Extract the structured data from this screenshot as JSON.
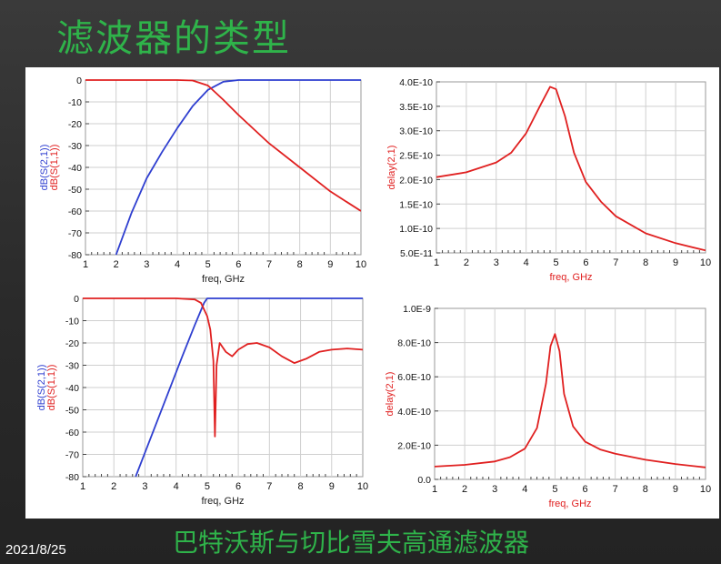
{
  "slide": {
    "title": "滤波器的类型",
    "caption": "巴特沃斯与切比雪夫高通滤波器",
    "date": "2021/8/25"
  },
  "colors": {
    "title": "#2fb34a",
    "s21": "#2f3fd0",
    "s11": "#e02020",
    "grid": "#cfcfcf"
  },
  "chart_data": [
    {
      "type": "line",
      "xlabel": "freq, GHz",
      "ylabel_parts": [
        {
          "text": "dB(S(2,1))",
          "color": "#2f3fd0"
        },
        {
          "text": "dB(S(1,1))",
          "color": "#e02020"
        }
      ],
      "xlim": [
        1,
        10
      ],
      "ylim": [
        -80,
        0
      ],
      "x_ticks": [
        "1",
        "2",
        "3",
        "4",
        "5",
        "6",
        "7",
        "8",
        "9",
        "10"
      ],
      "y_ticks": [
        "0",
        "-10",
        "-20",
        "-30",
        "-40",
        "-50",
        "-60",
        "-70",
        "-80"
      ],
      "series": [
        {
          "name": "dB(S(2,1))",
          "color": "#2f3fd0",
          "x": [
            2.0,
            2.5,
            3.0,
            3.5,
            4.0,
            4.5,
            5.0,
            5.5,
            6.0,
            7.0,
            8.0,
            9.0,
            10.0
          ],
          "y": [
            -80,
            -61,
            -45,
            -33,
            -22,
            -12,
            -4.5,
            -0.8,
            0,
            0,
            0,
            0,
            0
          ]
        },
        {
          "name": "dB(S(1,1))",
          "color": "#e02020",
          "x": [
            1.0,
            2.0,
            3.0,
            4.0,
            4.5,
            5.0,
            5.5,
            6.0,
            7.0,
            8.0,
            9.0,
            10.0
          ],
          "y": [
            0,
            0,
            0,
            0,
            -0.2,
            -2.5,
            -9,
            -16,
            -29,
            -40,
            -51,
            -60
          ]
        }
      ]
    },
    {
      "type": "line",
      "xlabel": "freq, GHz",
      "ylabel_parts": [
        {
          "text": "delay(2,1)",
          "color": "#e02020"
        }
      ],
      "xlim": [
        1,
        10
      ],
      "ylim": [
        5e-11,
        4e-10
      ],
      "x_ticks": [
        "1",
        "2",
        "3",
        "4",
        "5",
        "6",
        "7",
        "8",
        "9",
        "10"
      ],
      "y_ticks": [
        "4.0E-10",
        "3.5E-10",
        "3.0E-10",
        "2.5E-10",
        "2.0E-10",
        "1.5E-10",
        "1.0E-10",
        "5.0E-11"
      ],
      "series": [
        {
          "name": "delay(2,1)",
          "color": "#e02020",
          "x": [
            1.0,
            2.0,
            3.0,
            3.5,
            4.0,
            4.5,
            4.8,
            5.0,
            5.3,
            5.6,
            6.0,
            6.5,
            7.0,
            8.0,
            9.0,
            10.0
          ],
          "y": [
            2.05e-10,
            2.15e-10,
            2.35e-10,
            2.55e-10,
            2.95e-10,
            3.55e-10,
            3.9e-10,
            3.85e-10,
            3.3e-10,
            2.55e-10,
            1.95e-10,
            1.55e-10,
            1.25e-10,
            9e-11,
            7e-11,
            5.5e-11
          ]
        }
      ]
    },
    {
      "type": "line",
      "xlabel": "freq, GHz",
      "ylabel_parts": [
        {
          "text": "dB(S(2,1))",
          "color": "#2f3fd0"
        },
        {
          "text": "dB(S(1,1))",
          "color": "#e02020"
        }
      ],
      "xlim": [
        1,
        10
      ],
      "ylim": [
        -80,
        0
      ],
      "x_ticks": [
        "1",
        "2",
        "3",
        "4",
        "5",
        "6",
        "7",
        "8",
        "9",
        "10"
      ],
      "y_ticks": [
        "0",
        "-10",
        "-20",
        "-30",
        "-40",
        "-50",
        "-60",
        "-70",
        "-80"
      ],
      "series": [
        {
          "name": "dB(S(2,1))",
          "color": "#2f3fd0",
          "x": [
            2.7,
            3.2,
            3.7,
            4.2,
            4.6,
            4.9,
            5.0,
            5.5,
            6.0,
            8.0,
            10.0
          ],
          "y": [
            -80,
            -62,
            -44,
            -26,
            -12,
            -2,
            0,
            0,
            0,
            0,
            0
          ]
        },
        {
          "name": "dB(S(1,1))",
          "color": "#e02020",
          "x": [
            1.0,
            4.0,
            4.6,
            4.8,
            5.0,
            5.1,
            5.2,
            5.25,
            5.3,
            5.4,
            5.6,
            5.8,
            6.0,
            6.3,
            6.6,
            7.0,
            7.4,
            7.8,
            8.2,
            8.6,
            9.0,
            9.5,
            10.0
          ],
          "y": [
            0,
            0,
            -0.5,
            -2,
            -8,
            -14,
            -28,
            -62,
            -30,
            -20,
            -24,
            -26,
            -23,
            -20.5,
            -20,
            -22,
            -26,
            -29,
            -27,
            -24,
            -23,
            -22.5,
            -23
          ]
        }
      ]
    },
    {
      "type": "line",
      "xlabel": "freq, GHz",
      "ylabel_parts": [
        {
          "text": "delay(2,1)",
          "color": "#e02020"
        }
      ],
      "xlim": [
        1,
        10
      ],
      "ylim": [
        0,
        1e-09
      ],
      "x_ticks": [
        "1",
        "2",
        "3",
        "4",
        "5",
        "6",
        "7",
        "8",
        "9",
        "10"
      ],
      "y_ticks": [
        "1.0E-9",
        "8.0E-10",
        "6.0E-10",
        "4.0E-10",
        "2.0E-10",
        "0.0"
      ],
      "series": [
        {
          "name": "delay(2,1)",
          "color": "#e02020",
          "x": [
            1.0,
            2.0,
            3.0,
            3.5,
            4.0,
            4.4,
            4.7,
            4.85,
            5.0,
            5.15,
            5.3,
            5.6,
            6.0,
            6.5,
            7.0,
            8.0,
            9.0,
            10.0
          ],
          "y": [
            7.5e-11,
            8.5e-11,
            1.05e-10,
            1.3e-10,
            1.8e-10,
            3e-10,
            5.6e-10,
            7.8e-10,
            8.5e-10,
            7.5e-10,
            5e-10,
            3.1e-10,
            2.2e-10,
            1.75e-10,
            1.5e-10,
            1.15e-10,
            9e-11,
            7e-11
          ]
        }
      ]
    }
  ]
}
